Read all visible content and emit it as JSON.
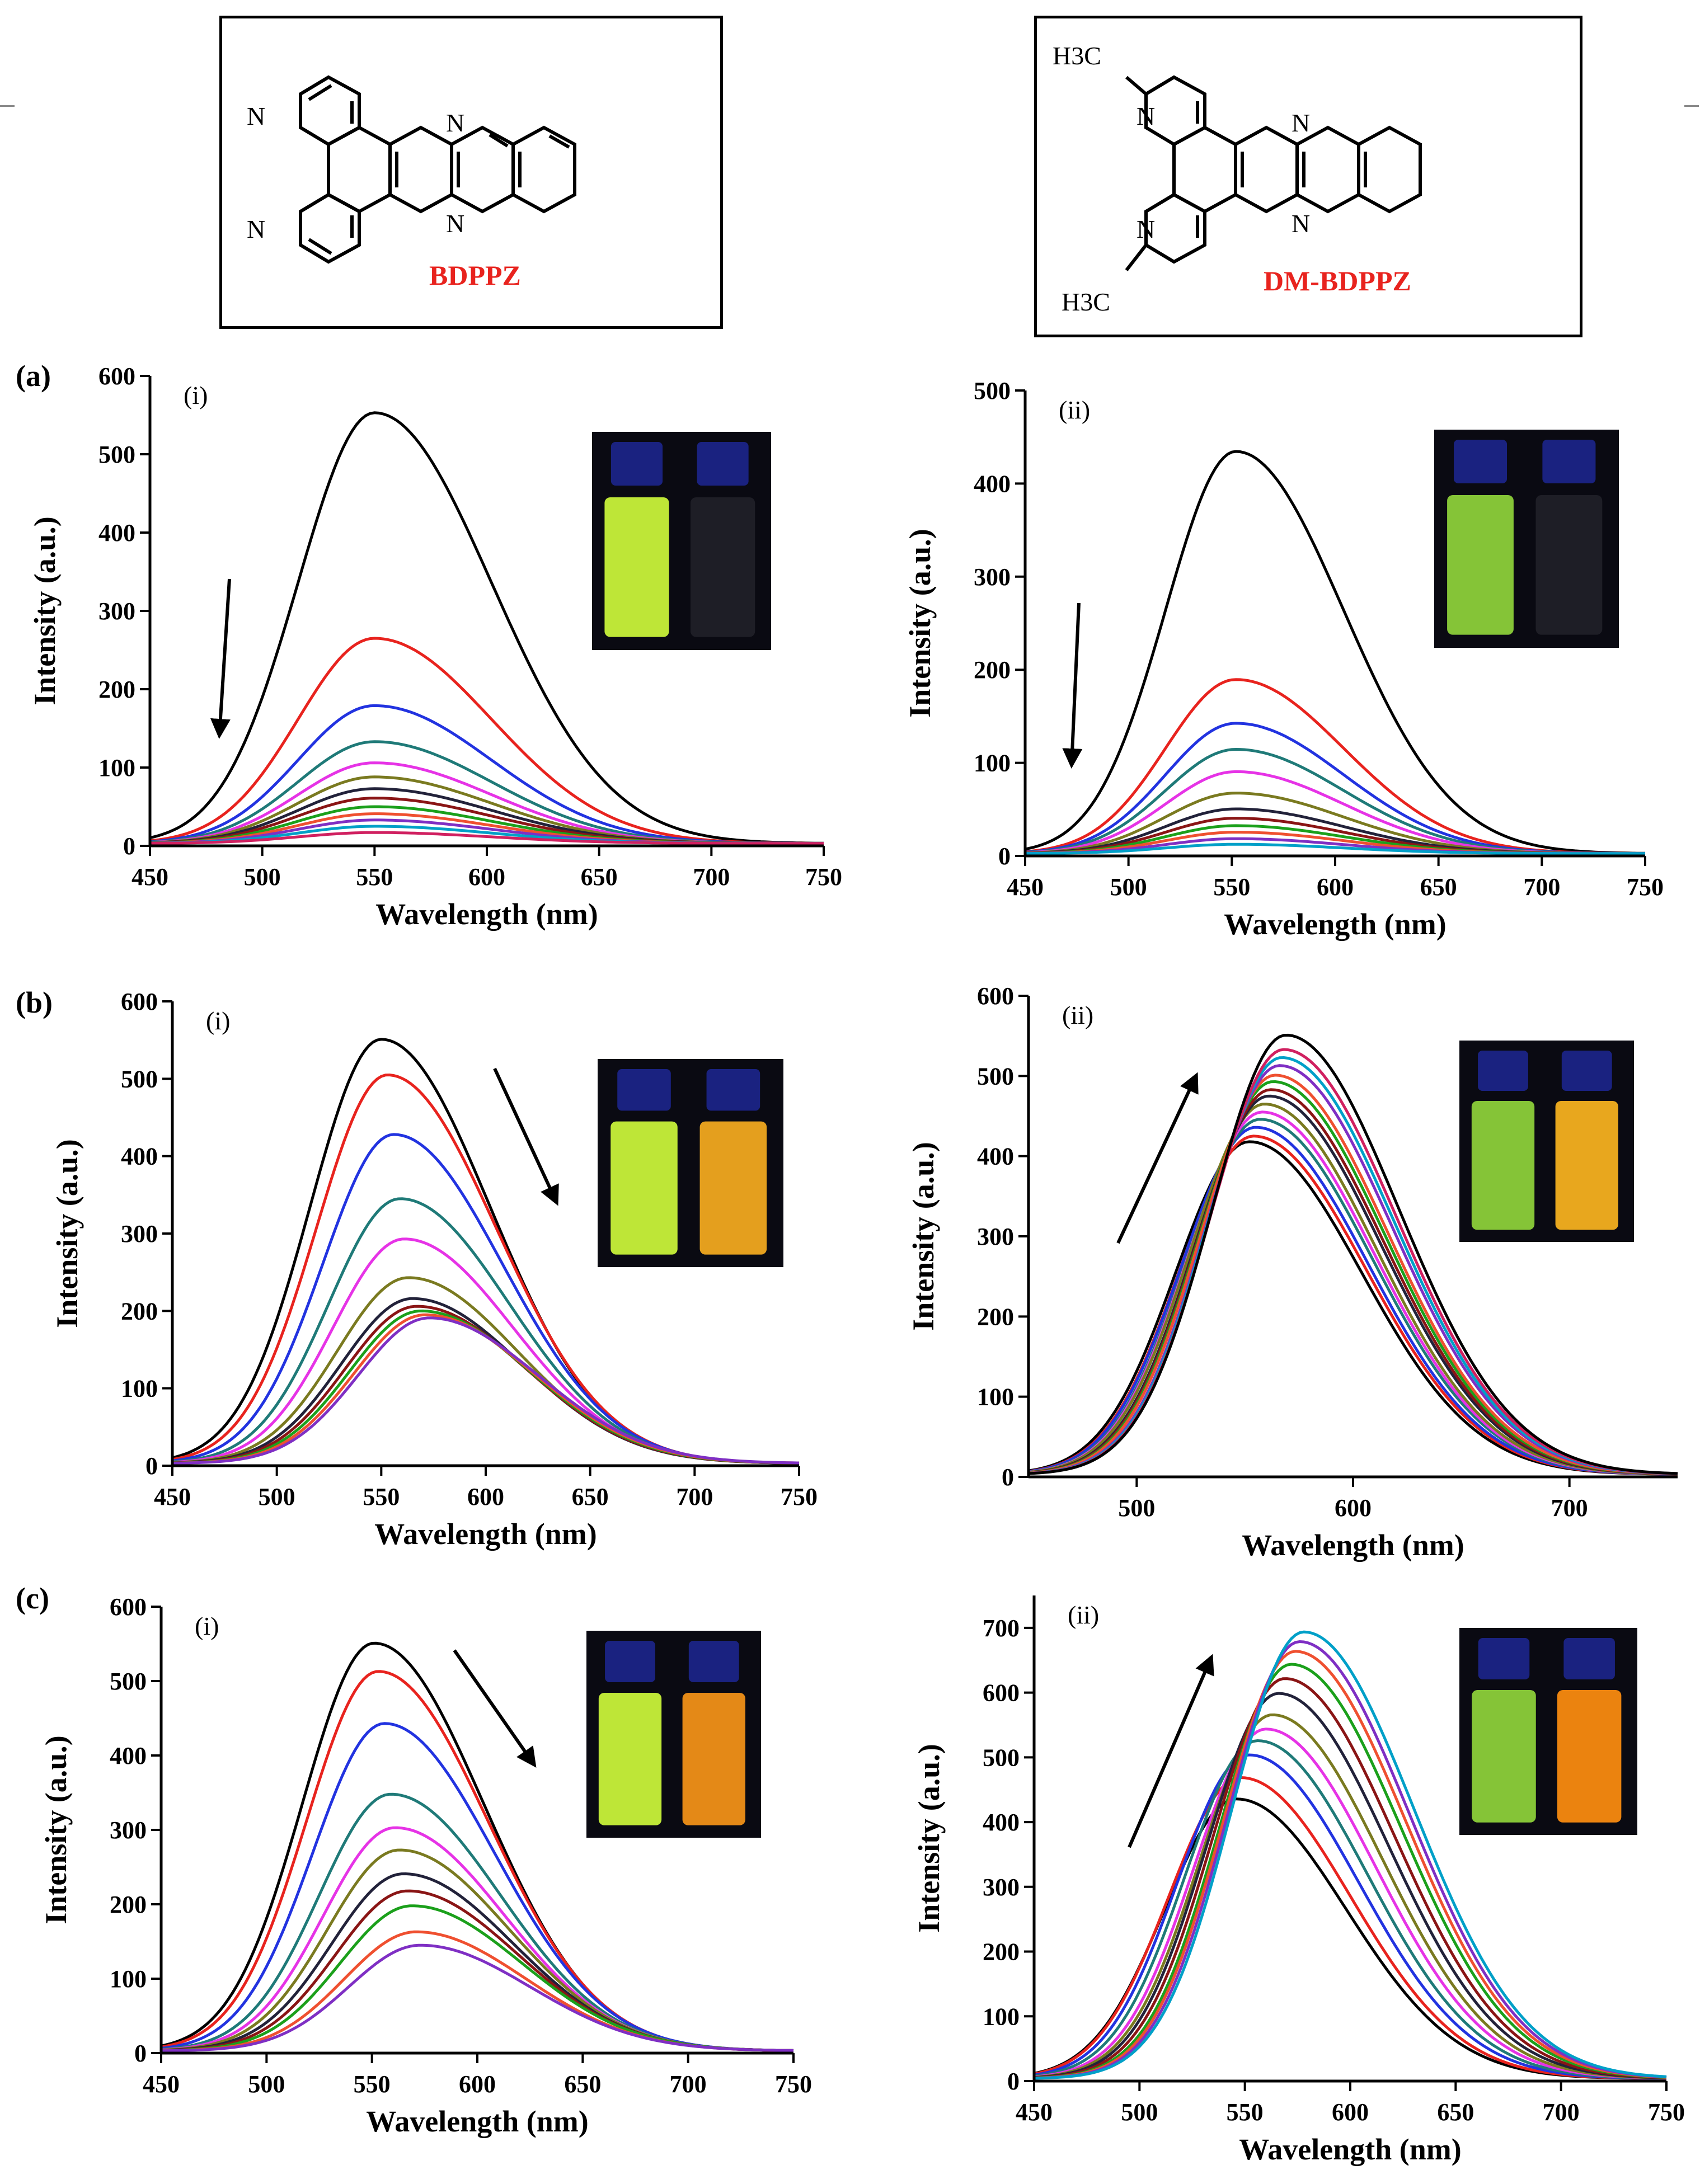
{
  "structures": [
    {
      "name": "BDPPZ",
      "atoms": [
        "N",
        "N",
        "N",
        "N"
      ]
    },
    {
      "name": "DM-BDPPZ",
      "atoms": [
        "N",
        "N",
        "N",
        "N"
      ],
      "substituent_top": "H3C",
      "substituent_bottom": "H3C"
    }
  ],
  "colors": {
    "series": [
      "#000000",
      "#e8231e",
      "#2233e0",
      "#1f7a78",
      "#e633e6",
      "#7a7a20",
      "#22223a",
      "#8a1515",
      "#1ba01b",
      "#ef5030",
      "#7f2fc4",
      "#00a0c8",
      "#d02060"
    ],
    "arrow": "#000000",
    "label_red": "#e8231e"
  },
  "chart_data": [
    {
      "type": "line",
      "panel": "(a)",
      "sub": "(i)",
      "xlabel": "Wavelength (nm)",
      "ylabel": "Intensity (a.u.)",
      "xlim": [
        450,
        750
      ],
      "ylim": [
        0,
        600
      ],
      "xticks": [
        "450",
        "500",
        "550",
        "600",
        "650",
        "700",
        "750"
      ],
      "yticks": [
        "0",
        "100",
        "200",
        "300",
        "400",
        "500",
        "600"
      ],
      "arrow": "down",
      "inset": {
        "left_vial": "green-yellow emission",
        "right_vial": "quenched"
      },
      "series": [
        {
          "peak_nm": 550,
          "peak": 550
        },
        {
          "peak_nm": 550,
          "peak": 262
        },
        {
          "peak_nm": 550,
          "peak": 176
        },
        {
          "peak_nm": 550,
          "peak": 130
        },
        {
          "peak_nm": 550,
          "peak": 103
        },
        {
          "peak_nm": 550,
          "peak": 85
        },
        {
          "peak_nm": 550,
          "peak": 70
        },
        {
          "peak_nm": 550,
          "peak": 58
        },
        {
          "peak_nm": 550,
          "peak": 47
        },
        {
          "peak_nm": 550,
          "peak": 38
        },
        {
          "peak_nm": 550,
          "peak": 30
        },
        {
          "peak_nm": 550,
          "peak": 22
        },
        {
          "peak_nm": 550,
          "peak": 14
        }
      ]
    },
    {
      "type": "line",
      "panel": "",
      "sub": "(ii)",
      "xlabel": "Wavelength (nm)",
      "ylabel": "Intensity (a.u.)",
      "xlim": [
        450,
        750
      ],
      "ylim": [
        0,
        500
      ],
      "xticks": [
        "450",
        "500",
        "550",
        "600",
        "650",
        "700",
        "750"
      ],
      "yticks": [
        "0",
        "100",
        "200",
        "300",
        "400",
        "500"
      ],
      "arrow": "down",
      "inset": {
        "left_vial": "green emission",
        "right_vial": "quenched"
      },
      "series": [
        {
          "peak_nm": 552,
          "peak": 432
        },
        {
          "peak_nm": 552,
          "peak": 187
        },
        {
          "peak_nm": 552,
          "peak": 140
        },
        {
          "peak_nm": 552,
          "peak": 112
        },
        {
          "peak_nm": 552,
          "peak": 88
        },
        {
          "peak_nm": 552,
          "peak": 65
        },
        {
          "peak_nm": 552,
          "peak": 48
        },
        {
          "peak_nm": 552,
          "peak": 38
        },
        {
          "peak_nm": 552,
          "peak": 30
        },
        {
          "peak_nm": 552,
          "peak": 23
        },
        {
          "peak_nm": 552,
          "peak": 16
        },
        {
          "peak_nm": 552,
          "peak": 10
        }
      ]
    },
    {
      "type": "line",
      "panel": "(b)",
      "sub": "(i)",
      "xlabel": "Wavelength (nm)",
      "ylabel": "Intensity (a.u.)",
      "xlim": [
        450,
        750
      ],
      "ylim": [
        0,
        600
      ],
      "xticks": [
        "450",
        "500",
        "550",
        "600",
        "650",
        "700",
        "750"
      ],
      "yticks": [
        "0",
        "100",
        "200",
        "300",
        "400",
        "500",
        "600"
      ],
      "arrow": "down-right",
      "inset": {
        "left_vial": "green-yellow emission",
        "right_vial": "orange emission"
      },
      "series": [
        {
          "peak_nm": 550,
          "peak": 548
        },
        {
          "peak_nm": 553,
          "peak": 502
        },
        {
          "peak_nm": 556,
          "peak": 425
        },
        {
          "peak_nm": 559,
          "peak": 342
        },
        {
          "peak_nm": 561,
          "peak": 290
        },
        {
          "peak_nm": 563,
          "peak": 240
        },
        {
          "peak_nm": 565,
          "peak": 213
        },
        {
          "peak_nm": 567,
          "peak": 203
        },
        {
          "peak_nm": 569,
          "peak": 197
        },
        {
          "peak_nm": 571,
          "peak": 192
        },
        {
          "peak_nm": 573,
          "peak": 188
        }
      ]
    },
    {
      "type": "line",
      "panel": "",
      "sub": "(ii)",
      "xlabel": "Wavelength (nm)",
      "ylabel": "Intensity (a.u.)",
      "xlim": [
        450,
        750
      ],
      "ylim": [
        0,
        600
      ],
      "xticks": [
        "500",
        "600",
        "700"
      ],
      "yticks": [
        "0",
        "100",
        "200",
        "300",
        "400",
        "500",
        "600"
      ],
      "arrow": "up-right",
      "inset": {
        "left_vial": "green emission",
        "right_vial": "yellow-orange emission"
      },
      "series": [
        {
          "peak_nm": 552,
          "peak": 415
        },
        {
          "peak_nm": 554,
          "peak": 422
        },
        {
          "peak_nm": 555,
          "peak": 433
        },
        {
          "peak_nm": 557,
          "peak": 443
        },
        {
          "peak_nm": 558,
          "peak": 452
        },
        {
          "peak_nm": 559,
          "peak": 462
        },
        {
          "peak_nm": 561,
          "peak": 472
        },
        {
          "peak_nm": 562,
          "peak": 480
        },
        {
          "peak_nm": 563,
          "peak": 490
        },
        {
          "peak_nm": 564,
          "peak": 498
        },
        {
          "peak_nm": 566,
          "peak": 510
        },
        {
          "peak_nm": 567,
          "peak": 520
        },
        {
          "peak_nm": 568,
          "peak": 530
        },
        {
          "peak_nm": 569,
          "peak": 548
        }
      ]
    },
    {
      "type": "line",
      "panel": "(c)",
      "sub": "(i)",
      "xlabel": "Wavelength (nm)",
      "ylabel": "Intensity (a.u.)",
      "xlim": [
        450,
        750
      ],
      "ylim": [
        0,
        600
      ],
      "xticks": [
        "450",
        "500",
        "550",
        "600",
        "650",
        "700",
        "750"
      ],
      "yticks": [
        "0",
        "100",
        "200",
        "300",
        "400",
        "500",
        "600"
      ],
      "arrow": "down-right",
      "inset": {
        "left_vial": "green-yellow emission",
        "right_vial": "orange emission"
      },
      "series": [
        {
          "peak_nm": 551,
          "peak": 548
        },
        {
          "peak_nm": 553,
          "peak": 510
        },
        {
          "peak_nm": 556,
          "peak": 440
        },
        {
          "peak_nm": 559,
          "peak": 345
        },
        {
          "peak_nm": 561,
          "peak": 300
        },
        {
          "peak_nm": 563,
          "peak": 270
        },
        {
          "peak_nm": 565,
          "peak": 238
        },
        {
          "peak_nm": 567,
          "peak": 215
        },
        {
          "peak_nm": 569,
          "peak": 195
        },
        {
          "peak_nm": 571,
          "peak": 160
        },
        {
          "peak_nm": 573,
          "peak": 142
        }
      ]
    },
    {
      "type": "line",
      "panel": "",
      "sub": "(ii)",
      "xlabel": "Wavelength (nm)",
      "ylabel": "Intensity (a.u.)",
      "xlim": [
        450,
        750
      ],
      "ylim": [
        0,
        750
      ],
      "xticks": [
        "450",
        "500",
        "550",
        "600",
        "650",
        "700",
        "750"
      ],
      "yticks": [
        "0",
        "100",
        "200",
        "300",
        "400",
        "500",
        "600",
        "700"
      ],
      "arrow": "up-right",
      "inset": {
        "left_vial": "green emission",
        "right_vial": "orange emission"
      },
      "series": [
        {
          "peak_nm": 546,
          "peak": 432
        },
        {
          "peak_nm": 548,
          "peak": 465
        },
        {
          "peak_nm": 552,
          "peak": 500
        },
        {
          "peak_nm": 556,
          "peak": 522
        },
        {
          "peak_nm": 560,
          "peak": 540
        },
        {
          "peak_nm": 563,
          "peak": 562
        },
        {
          "peak_nm": 566,
          "peak": 595
        },
        {
          "peak_nm": 569,
          "peak": 618
        },
        {
          "peak_nm": 572,
          "peak": 640
        },
        {
          "peak_nm": 574,
          "peak": 660
        },
        {
          "peak_nm": 576,
          "peak": 675
        },
        {
          "peak_nm": 578,
          "peak": 690
        }
      ]
    }
  ]
}
